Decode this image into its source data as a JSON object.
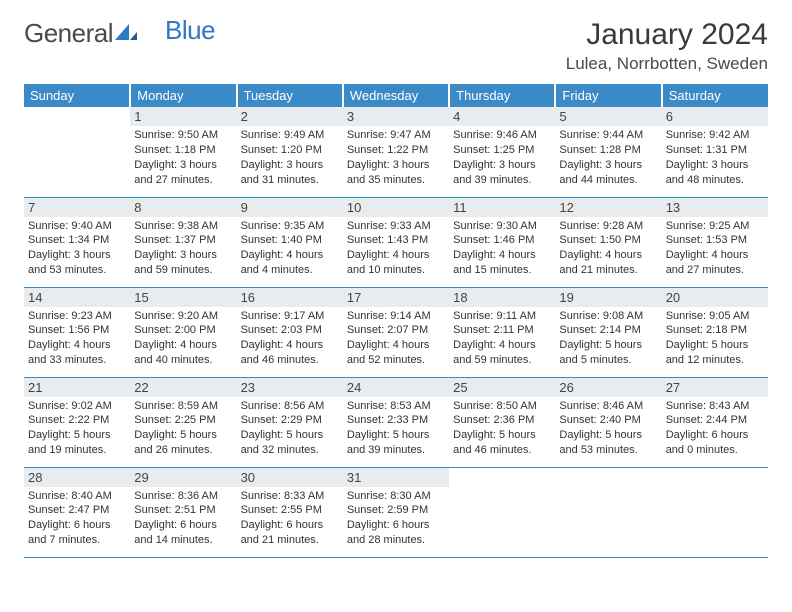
{
  "logo": {
    "part1": "General",
    "part2": "Blue"
  },
  "title": "January 2024",
  "location": "Lulea, Norrbotten, Sweden",
  "colors": {
    "header_bg": "#3a8ac8",
    "header_text": "#ffffff",
    "daynum_bg": "#e9ecef",
    "cell_border": "#3a8ac8",
    "logo_gray": "#5a5a5a",
    "logo_blue": "#2f78c2",
    "body_text": "#333333"
  },
  "day_headers": [
    "Sunday",
    "Monday",
    "Tuesday",
    "Wednesday",
    "Thursday",
    "Friday",
    "Saturday"
  ],
  "weeks": [
    [
      null,
      {
        "n": "1",
        "sr": "Sunrise: 9:50 AM",
        "ss": "Sunset: 1:18 PM",
        "d1": "Daylight: 3 hours",
        "d2": "and 27 minutes."
      },
      {
        "n": "2",
        "sr": "Sunrise: 9:49 AM",
        "ss": "Sunset: 1:20 PM",
        "d1": "Daylight: 3 hours",
        "d2": "and 31 minutes."
      },
      {
        "n": "3",
        "sr": "Sunrise: 9:47 AM",
        "ss": "Sunset: 1:22 PM",
        "d1": "Daylight: 3 hours",
        "d2": "and 35 minutes."
      },
      {
        "n": "4",
        "sr": "Sunrise: 9:46 AM",
        "ss": "Sunset: 1:25 PM",
        "d1": "Daylight: 3 hours",
        "d2": "and 39 minutes."
      },
      {
        "n": "5",
        "sr": "Sunrise: 9:44 AM",
        "ss": "Sunset: 1:28 PM",
        "d1": "Daylight: 3 hours",
        "d2": "and 44 minutes."
      },
      {
        "n": "6",
        "sr": "Sunrise: 9:42 AM",
        "ss": "Sunset: 1:31 PM",
        "d1": "Daylight: 3 hours",
        "d2": "and 48 minutes."
      }
    ],
    [
      {
        "n": "7",
        "sr": "Sunrise: 9:40 AM",
        "ss": "Sunset: 1:34 PM",
        "d1": "Daylight: 3 hours",
        "d2": "and 53 minutes."
      },
      {
        "n": "8",
        "sr": "Sunrise: 9:38 AM",
        "ss": "Sunset: 1:37 PM",
        "d1": "Daylight: 3 hours",
        "d2": "and 59 minutes."
      },
      {
        "n": "9",
        "sr": "Sunrise: 9:35 AM",
        "ss": "Sunset: 1:40 PM",
        "d1": "Daylight: 4 hours",
        "d2": "and 4 minutes."
      },
      {
        "n": "10",
        "sr": "Sunrise: 9:33 AM",
        "ss": "Sunset: 1:43 PM",
        "d1": "Daylight: 4 hours",
        "d2": "and 10 minutes."
      },
      {
        "n": "11",
        "sr": "Sunrise: 9:30 AM",
        "ss": "Sunset: 1:46 PM",
        "d1": "Daylight: 4 hours",
        "d2": "and 15 minutes."
      },
      {
        "n": "12",
        "sr": "Sunrise: 9:28 AM",
        "ss": "Sunset: 1:50 PM",
        "d1": "Daylight: 4 hours",
        "d2": "and 21 minutes."
      },
      {
        "n": "13",
        "sr": "Sunrise: 9:25 AM",
        "ss": "Sunset: 1:53 PM",
        "d1": "Daylight: 4 hours",
        "d2": "and 27 minutes."
      }
    ],
    [
      {
        "n": "14",
        "sr": "Sunrise: 9:23 AM",
        "ss": "Sunset: 1:56 PM",
        "d1": "Daylight: 4 hours",
        "d2": "and 33 minutes."
      },
      {
        "n": "15",
        "sr": "Sunrise: 9:20 AM",
        "ss": "Sunset: 2:00 PM",
        "d1": "Daylight: 4 hours",
        "d2": "and 40 minutes."
      },
      {
        "n": "16",
        "sr": "Sunrise: 9:17 AM",
        "ss": "Sunset: 2:03 PM",
        "d1": "Daylight: 4 hours",
        "d2": "and 46 minutes."
      },
      {
        "n": "17",
        "sr": "Sunrise: 9:14 AM",
        "ss": "Sunset: 2:07 PM",
        "d1": "Daylight: 4 hours",
        "d2": "and 52 minutes."
      },
      {
        "n": "18",
        "sr": "Sunrise: 9:11 AM",
        "ss": "Sunset: 2:11 PM",
        "d1": "Daylight: 4 hours",
        "d2": "and 59 minutes."
      },
      {
        "n": "19",
        "sr": "Sunrise: 9:08 AM",
        "ss": "Sunset: 2:14 PM",
        "d1": "Daylight: 5 hours",
        "d2": "and 5 minutes."
      },
      {
        "n": "20",
        "sr": "Sunrise: 9:05 AM",
        "ss": "Sunset: 2:18 PM",
        "d1": "Daylight: 5 hours",
        "d2": "and 12 minutes."
      }
    ],
    [
      {
        "n": "21",
        "sr": "Sunrise: 9:02 AM",
        "ss": "Sunset: 2:22 PM",
        "d1": "Daylight: 5 hours",
        "d2": "and 19 minutes."
      },
      {
        "n": "22",
        "sr": "Sunrise: 8:59 AM",
        "ss": "Sunset: 2:25 PM",
        "d1": "Daylight: 5 hours",
        "d2": "and 26 minutes."
      },
      {
        "n": "23",
        "sr": "Sunrise: 8:56 AM",
        "ss": "Sunset: 2:29 PM",
        "d1": "Daylight: 5 hours",
        "d2": "and 32 minutes."
      },
      {
        "n": "24",
        "sr": "Sunrise: 8:53 AM",
        "ss": "Sunset: 2:33 PM",
        "d1": "Daylight: 5 hours",
        "d2": "and 39 minutes."
      },
      {
        "n": "25",
        "sr": "Sunrise: 8:50 AM",
        "ss": "Sunset: 2:36 PM",
        "d1": "Daylight: 5 hours",
        "d2": "and 46 minutes."
      },
      {
        "n": "26",
        "sr": "Sunrise: 8:46 AM",
        "ss": "Sunset: 2:40 PM",
        "d1": "Daylight: 5 hours",
        "d2": "and 53 minutes."
      },
      {
        "n": "27",
        "sr": "Sunrise: 8:43 AM",
        "ss": "Sunset: 2:44 PM",
        "d1": "Daylight: 6 hours",
        "d2": "and 0 minutes."
      }
    ],
    [
      {
        "n": "28",
        "sr": "Sunrise: 8:40 AM",
        "ss": "Sunset: 2:47 PM",
        "d1": "Daylight: 6 hours",
        "d2": "and 7 minutes."
      },
      {
        "n": "29",
        "sr": "Sunrise: 8:36 AM",
        "ss": "Sunset: 2:51 PM",
        "d1": "Daylight: 6 hours",
        "d2": "and 14 minutes."
      },
      {
        "n": "30",
        "sr": "Sunrise: 8:33 AM",
        "ss": "Sunset: 2:55 PM",
        "d1": "Daylight: 6 hours",
        "d2": "and 21 minutes."
      },
      {
        "n": "31",
        "sr": "Sunrise: 8:30 AM",
        "ss": "Sunset: 2:59 PM",
        "d1": "Daylight: 6 hours",
        "d2": "and 28 minutes."
      },
      null,
      null,
      null
    ]
  ]
}
